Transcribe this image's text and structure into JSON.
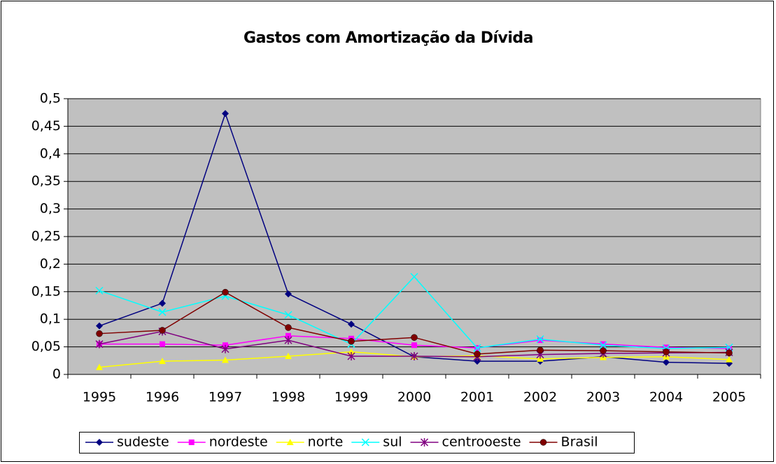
{
  "chart_data": {
    "type": "line",
    "title": "Gastos com Amortização da Dívida",
    "categories": [
      "1995",
      "1996",
      "1997",
      "1998",
      "1999",
      "2000",
      "2001",
      "2002",
      "2003",
      "2004",
      "2005"
    ],
    "series": [
      {
        "name": "sudeste",
        "color": "#000080",
        "marker": "diamond",
        "values": [
          0.088,
          0.129,
          0.473,
          0.146,
          0.091,
          0.032,
          0.024,
          0.024,
          0.032,
          0.022,
          0.02
        ]
      },
      {
        "name": "nordeste",
        "color": "#ff00ff",
        "marker": "square",
        "values": [
          0.055,
          0.055,
          0.053,
          0.07,
          0.065,
          0.053,
          0.048,
          0.062,
          0.055,
          0.049,
          0.047
        ]
      },
      {
        "name": "norte",
        "color": "#ffff00",
        "marker": "triangle",
        "values": [
          0.013,
          0.024,
          0.026,
          0.033,
          0.041,
          0.032,
          0.034,
          0.028,
          0.031,
          0.032,
          0.027
        ]
      },
      {
        "name": "sul",
        "color": "#00ffff",
        "marker": "x",
        "values": [
          0.152,
          0.113,
          0.142,
          0.108,
          0.055,
          0.177,
          0.048,
          0.064,
          0.053,
          0.047,
          0.049
        ]
      },
      {
        "name": "centrooeste",
        "color": "#800080",
        "marker": "star",
        "values": [
          0.055,
          0.078,
          0.046,
          0.062,
          0.033,
          0.033,
          0.032,
          0.036,
          0.038,
          0.039,
          0.04
        ]
      },
      {
        "name": "Brasil",
        "color": "#800000",
        "marker": "circle",
        "values": [
          0.074,
          0.08,
          0.149,
          0.085,
          0.06,
          0.067,
          0.037,
          0.044,
          0.043,
          0.041,
          0.039
        ]
      }
    ],
    "ylim": [
      0,
      0.5
    ],
    "yticks": [
      0,
      {
        "value": 0.05,
        "label": "0,05"
      },
      {
        "value": 0.1,
        "label": "0,1"
      },
      {
        "value": 0.15,
        "label": "0,15"
      },
      {
        "value": 0.2,
        "label": "0,2"
      },
      {
        "value": 0.25,
        "label": "0,25"
      },
      {
        "value": 0.3,
        "label": "0,3"
      },
      {
        "value": 0.35,
        "label": "0,35"
      },
      {
        "value": 0.4,
        "label": "0,4"
      },
      {
        "value": 0.45,
        "label": "0,45"
      },
      {
        "value": 0.5,
        "label": "0,5"
      }
    ],
    "grid": true,
    "legend": "bottom",
    "plot_background": "#c0c0c0"
  }
}
